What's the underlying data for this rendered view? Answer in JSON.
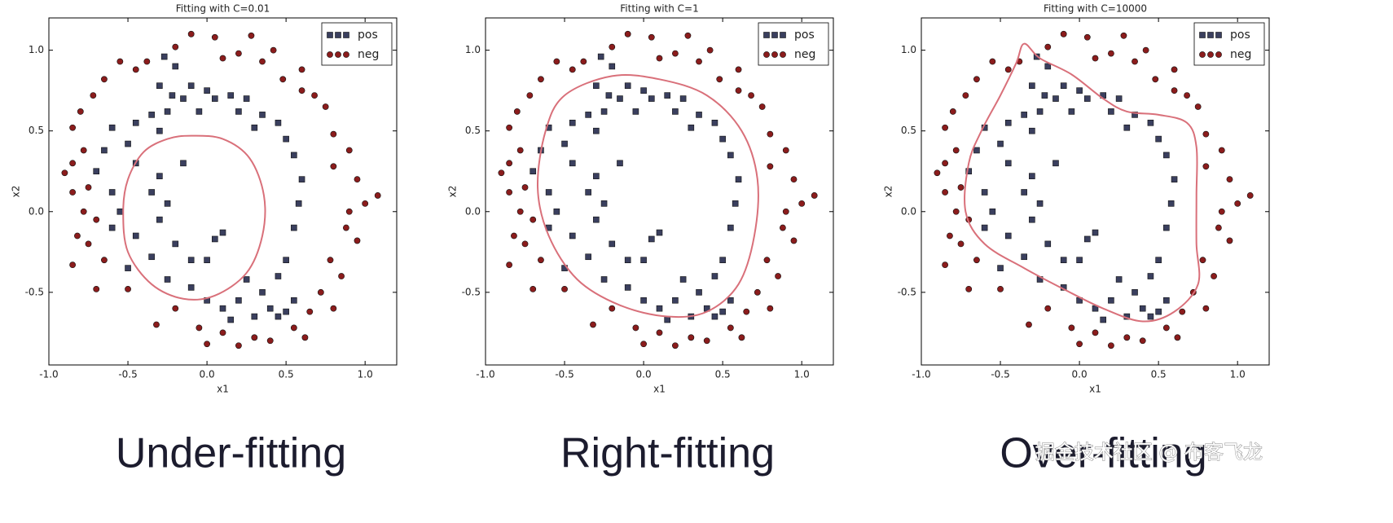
{
  "chart_data": [
    {
      "type": "scatter",
      "title": "Fitting with C=0.01",
      "x_label": "x1",
      "y_label": "x2",
      "caption": "Under-fitting",
      "xlim": [
        -1,
        1.2
      ],
      "ylim": [
        -0.95,
        1.2
      ],
      "xticks": [
        {
          "value": -1,
          "label": "-1.0"
        },
        -0.5,
        {
          "value": 0,
          "label": "0.0"
        },
        0.5,
        {
          "value": 1,
          "label": "1.0"
        }
      ],
      "yticks": [
        -0.5,
        {
          "value": 0,
          "label": "0.0"
        },
        0.5,
        {
          "value": 1,
          "label": "1.0"
        }
      ],
      "legend": "upper right",
      "series": [
        {
          "name": "pos",
          "color": "#3a3f5e",
          "marker": "square",
          "x": [
            -0.27,
            -0.2,
            -0.3,
            -0.1,
            0.0,
            -0.22,
            -0.15,
            0.05,
            0.15,
            0.25,
            -0.35,
            -0.25,
            -0.05,
            0.2,
            0.35,
            -0.45,
            -0.6,
            -0.3,
            0.3,
            0.45,
            -0.65,
            -0.5,
            0.5,
            0.55,
            -0.7,
            -0.45,
            -0.3,
            -0.15,
            0.6,
            -0.6,
            -0.35,
            -0.25,
            0.58,
            -0.55,
            -0.3,
            -0.6,
            0.55,
            -0.45,
            -0.2,
            0.05,
            0.1,
            -0.35,
            -0.1,
            0.0,
            0.5,
            -0.5,
            -0.25,
            -0.1,
            0.25,
            0.45,
            0.55,
            0.35,
            0.2,
            0.1,
            0.15,
            0.3,
            0.4,
            0.5,
            0.0,
            0.45
          ],
          "values": [
            0.96,
            0.9,
            0.78,
            0.78,
            0.75,
            0.72,
            0.7,
            0.7,
            0.72,
            0.7,
            0.6,
            0.62,
            0.62,
            0.62,
            0.6,
            0.55,
            0.52,
            0.5,
            0.52,
            0.55,
            0.38,
            0.42,
            0.45,
            0.35,
            0.25,
            0.3,
            0.22,
            0.3,
            0.2,
            0.12,
            0.12,
            0.05,
            0.05,
            0.0,
            -0.05,
            -0.1,
            -0.1,
            -0.15,
            -0.2,
            -0.17,
            -0.13,
            -0.28,
            -0.3,
            -0.3,
            -0.3,
            -0.35,
            -0.42,
            -0.47,
            -0.42,
            -0.4,
            -0.55,
            -0.5,
            -0.55,
            -0.6,
            -0.67,
            -0.65,
            -0.6,
            -0.62,
            -0.55,
            -0.65
          ]
        },
        {
          "name": "neg",
          "color": "#8b1c1c",
          "marker": "circle",
          "x": [
            -0.1,
            0.05,
            0.28,
            -0.2,
            0.2,
            0.42,
            -0.38,
            -0.55,
            0.35,
            0.6,
            -0.45,
            0.1,
            -0.65,
            -0.72,
            0.48,
            0.68,
            -0.8,
            0.75,
            -0.85,
            0.6,
            -0.78,
            0.8,
            -0.85,
            0.9,
            -0.9,
            0.8,
            -0.75,
            0.95,
            -0.85,
            1.08,
            -0.78,
            0.9,
            -0.7,
            1.0,
            -0.82,
            0.88,
            -0.75,
            0.95,
            -0.85,
            0.78,
            -0.65,
            0.85,
            -0.7,
            0.72,
            -0.5,
            0.8,
            -0.32,
            0.65,
            -0.2,
            0.55,
            0.0,
            0.3,
            0.2,
            0.4,
            -0.05,
            0.62,
            0.1
          ],
          "values": [
            1.1,
            1.08,
            1.09,
            1.02,
            0.98,
            1.0,
            0.93,
            0.93,
            0.93,
            0.88,
            0.88,
            0.95,
            0.82,
            0.72,
            0.82,
            0.72,
            0.62,
            0.65,
            0.52,
            0.75,
            0.38,
            0.48,
            0.3,
            0.38,
            0.24,
            0.28,
            0.15,
            0.2,
            0.12,
            0.1,
            0.0,
            0.0,
            -0.05,
            0.05,
            -0.15,
            -0.1,
            -0.2,
            -0.18,
            -0.33,
            -0.3,
            -0.3,
            -0.4,
            -0.48,
            -0.5,
            -0.48,
            -0.6,
            -0.7,
            -0.62,
            -0.6,
            -0.72,
            -0.82,
            -0.78,
            -0.83,
            -0.8,
            -0.72,
            -0.78,
            -0.75
          ]
        }
      ],
      "boundary": {
        "color": "#d9707a",
        "x": [
          -0.1,
          0.1,
          0.27,
          0.36,
          0.35,
          0.25,
          0.05,
          -0.15,
          -0.35,
          -0.5,
          -0.53,
          -0.5,
          -0.4,
          -0.25
        ],
        "y": [
          0.47,
          0.45,
          0.33,
          0.1,
          -0.15,
          -0.38,
          -0.52,
          -0.54,
          -0.45,
          -0.25,
          0.0,
          0.2,
          0.37,
          0.45
        ]
      }
    },
    {
      "type": "scatter",
      "title": "Fitting with C=1",
      "x_label": "x1",
      "y_label": "x2",
      "caption": "Right-fitting",
      "xlim": [
        -1,
        1.2
      ],
      "ylim": [
        -0.95,
        1.2
      ],
      "xticks": [
        {
          "value": -1,
          "label": "-1.0"
        },
        -0.5,
        {
          "value": 0,
          "label": "0.0"
        },
        0.5,
        {
          "value": 1,
          "label": "1.0"
        }
      ],
      "yticks": [
        -0.5,
        {
          "value": 0,
          "label": "0.0"
        },
        0.5,
        {
          "value": 1,
          "label": "1.0"
        }
      ],
      "legend": "upper right",
      "series": [
        {
          "name": "pos",
          "color": "#3a3f5e",
          "marker": "square",
          "x": [
            -0.27,
            -0.2,
            -0.3,
            -0.1,
            0.0,
            -0.22,
            -0.15,
            0.05,
            0.15,
            0.25,
            -0.35,
            -0.25,
            -0.05,
            0.2,
            0.35,
            -0.45,
            -0.6,
            -0.3,
            0.3,
            0.45,
            -0.65,
            -0.5,
            0.5,
            0.55,
            -0.7,
            -0.45,
            -0.3,
            -0.15,
            0.6,
            -0.6,
            -0.35,
            -0.25,
            0.58,
            -0.55,
            -0.3,
            -0.6,
            0.55,
            -0.45,
            -0.2,
            0.05,
            0.1,
            -0.35,
            -0.1,
            0.0,
            0.5,
            -0.5,
            -0.25,
            -0.1,
            0.25,
            0.45,
            0.55,
            0.35,
            0.2,
            0.1,
            0.15,
            0.3,
            0.4,
            0.5,
            0.0,
            0.45
          ],
          "values": [
            0.96,
            0.9,
            0.78,
            0.78,
            0.75,
            0.72,
            0.7,
            0.7,
            0.72,
            0.7,
            0.6,
            0.62,
            0.62,
            0.62,
            0.6,
            0.55,
            0.52,
            0.5,
            0.52,
            0.55,
            0.38,
            0.42,
            0.45,
            0.35,
            0.25,
            0.3,
            0.22,
            0.3,
            0.2,
            0.12,
            0.12,
            0.05,
            0.05,
            0.0,
            -0.05,
            -0.1,
            -0.1,
            -0.15,
            -0.2,
            -0.17,
            -0.13,
            -0.28,
            -0.3,
            -0.3,
            -0.3,
            -0.35,
            -0.42,
            -0.47,
            -0.42,
            -0.4,
            -0.55,
            -0.5,
            -0.55,
            -0.6,
            -0.67,
            -0.65,
            -0.6,
            -0.62,
            -0.55,
            -0.65
          ]
        },
        {
          "name": "neg",
          "color": "#8b1c1c",
          "marker": "circle",
          "x": [
            -0.1,
            0.05,
            0.28,
            -0.2,
            0.2,
            0.42,
            -0.38,
            -0.55,
            0.35,
            0.6,
            -0.45,
            0.1,
            -0.65,
            -0.72,
            0.48,
            0.68,
            -0.8,
            0.75,
            -0.85,
            0.6,
            -0.78,
            0.8,
            -0.85,
            0.9,
            -0.9,
            0.8,
            -0.75,
            0.95,
            -0.85,
            1.08,
            -0.78,
            0.9,
            -0.7,
            1.0,
            -0.82,
            0.88,
            -0.75,
            0.95,
            -0.85,
            0.78,
            -0.65,
            0.85,
            -0.7,
            0.72,
            -0.5,
            0.8,
            -0.32,
            0.65,
            -0.2,
            0.55,
            0.0,
            0.3,
            0.2,
            0.4,
            -0.05,
            0.62,
            0.1
          ],
          "values": [
            1.1,
            1.08,
            1.09,
            1.02,
            0.98,
            1.0,
            0.93,
            0.93,
            0.93,
            0.88,
            0.88,
            0.95,
            0.82,
            0.72,
            0.82,
            0.72,
            0.62,
            0.65,
            0.52,
            0.75,
            0.38,
            0.48,
            0.3,
            0.38,
            0.24,
            0.28,
            0.15,
            0.2,
            0.12,
            0.1,
            0.0,
            0.0,
            -0.05,
            0.05,
            -0.15,
            -0.1,
            -0.2,
            -0.18,
            -0.33,
            -0.3,
            -0.3,
            -0.4,
            -0.48,
            -0.5,
            -0.48,
            -0.6,
            -0.7,
            -0.62,
            -0.6,
            -0.72,
            -0.82,
            -0.78,
            -0.83,
            -0.8,
            -0.72,
            -0.78,
            -0.75
          ]
        }
      ],
      "boundary": {
        "color": "#d9707a",
        "x": [
          -0.2,
          0.1,
          0.4,
          0.62,
          0.72,
          0.7,
          0.6,
          0.4,
          0.15,
          -0.15,
          -0.42,
          -0.6,
          -0.67,
          -0.62,
          -0.5
        ],
        "y": [
          0.84,
          0.82,
          0.72,
          0.5,
          0.2,
          -0.15,
          -0.45,
          -0.62,
          -0.65,
          -0.58,
          -0.42,
          -0.15,
          0.15,
          0.5,
          0.72
        ]
      }
    },
    {
      "type": "scatter",
      "title": "Fitting with C=10000",
      "x_label": "x1",
      "y_label": "x2",
      "caption": "Over-fitting",
      "xlim": [
        -1,
        1.2
      ],
      "ylim": [
        -0.95,
        1.2
      ],
      "xticks": [
        {
          "value": -1,
          "label": "-1.0"
        },
        -0.5,
        {
          "value": 0,
          "label": "0.0"
        },
        0.5,
        {
          "value": 1,
          "label": "1.0"
        }
      ],
      "yticks": [
        -0.5,
        {
          "value": 0,
          "label": "0.0"
        },
        0.5,
        {
          "value": 1,
          "label": "1.0"
        }
      ],
      "legend": "upper right",
      "series": [
        {
          "name": "pos",
          "color": "#3a3f5e",
          "marker": "square",
          "x": [
            -0.27,
            -0.2,
            -0.3,
            -0.1,
            0.0,
            -0.22,
            -0.15,
            0.05,
            0.15,
            0.25,
            -0.35,
            -0.25,
            -0.05,
            0.2,
            0.35,
            -0.45,
            -0.6,
            -0.3,
            0.3,
            0.45,
            -0.65,
            -0.5,
            0.5,
            0.55,
            -0.7,
            -0.45,
            -0.3,
            -0.15,
            0.6,
            -0.6,
            -0.35,
            -0.25,
            0.58,
            -0.55,
            -0.3,
            -0.6,
            0.55,
            -0.45,
            -0.2,
            0.05,
            0.1,
            -0.35,
            -0.1,
            0.0,
            0.5,
            -0.5,
            -0.25,
            -0.1,
            0.25,
            0.45,
            0.55,
            0.35,
            0.2,
            0.1,
            0.15,
            0.3,
            0.4,
            0.5,
            0.0,
            0.45
          ],
          "values": [
            0.96,
            0.9,
            0.78,
            0.78,
            0.75,
            0.72,
            0.7,
            0.7,
            0.72,
            0.7,
            0.6,
            0.62,
            0.62,
            0.62,
            0.6,
            0.55,
            0.52,
            0.5,
            0.52,
            0.55,
            0.38,
            0.42,
            0.45,
            0.35,
            0.25,
            0.3,
            0.22,
            0.3,
            0.2,
            0.12,
            0.12,
            0.05,
            0.05,
            0.0,
            -0.05,
            -0.1,
            -0.1,
            -0.15,
            -0.2,
            -0.17,
            -0.13,
            -0.28,
            -0.3,
            -0.3,
            -0.3,
            -0.35,
            -0.42,
            -0.47,
            -0.42,
            -0.4,
            -0.55,
            -0.5,
            -0.55,
            -0.6,
            -0.67,
            -0.65,
            -0.6,
            -0.62,
            -0.55,
            -0.65
          ]
        },
        {
          "name": "neg",
          "color": "#8b1c1c",
          "marker": "circle",
          "x": [
            -0.1,
            0.05,
            0.28,
            -0.2,
            0.2,
            0.42,
            -0.38,
            -0.55,
            0.35,
            0.6,
            -0.45,
            0.1,
            -0.65,
            -0.72,
            0.48,
            0.68,
            -0.8,
            0.75,
            -0.85,
            0.6,
            -0.78,
            0.8,
            -0.85,
            0.9,
            -0.9,
            0.8,
            -0.75,
            0.95,
            -0.85,
            1.08,
            -0.78,
            0.9,
            -0.7,
            1.0,
            -0.82,
            0.88,
            -0.75,
            0.95,
            -0.85,
            0.78,
            -0.65,
            0.85,
            -0.7,
            0.72,
            -0.5,
            0.8,
            -0.32,
            0.65,
            -0.2,
            0.55,
            0.0,
            0.3,
            0.2,
            0.4,
            -0.05,
            0.62,
            0.1
          ],
          "values": [
            1.1,
            1.08,
            1.09,
            1.02,
            0.98,
            1.0,
            0.93,
            0.93,
            0.93,
            0.88,
            0.88,
            0.95,
            0.82,
            0.72,
            0.82,
            0.72,
            0.62,
            0.65,
            0.52,
            0.75,
            0.38,
            0.48,
            0.3,
            0.38,
            0.24,
            0.28,
            0.15,
            0.2,
            0.12,
            0.1,
            0.0,
            0.0,
            -0.05,
            0.05,
            -0.15,
            -0.1,
            -0.2,
            -0.18,
            -0.33,
            -0.3,
            -0.3,
            -0.4,
            -0.48,
            -0.5,
            -0.48,
            -0.6,
            -0.7,
            -0.62,
            -0.6,
            -0.72,
            -0.82,
            -0.78,
            -0.83,
            -0.8,
            -0.72,
            -0.78,
            -0.75
          ]
        }
      ],
      "boundary": {
        "color": "#d9707a",
        "x": [
          -0.35,
          -0.25,
          -0.05,
          0.15,
          0.3,
          0.5,
          0.68,
          0.74,
          0.74,
          0.74,
          0.75,
          0.6,
          0.4,
          0.15,
          -0.1,
          -0.35,
          -0.6,
          -0.72,
          -0.7,
          -0.62,
          -0.5,
          -0.4
        ],
        "y": [
          1.04,
          0.95,
          0.85,
          0.7,
          0.62,
          0.6,
          0.55,
          0.4,
          0.1,
          -0.2,
          -0.45,
          -0.62,
          -0.68,
          -0.6,
          -0.48,
          -0.35,
          -0.2,
          0.0,
          0.3,
          0.5,
          0.72,
          0.92
        ]
      }
    }
  ],
  "watermark": "掘金技术社区 @ 布客飞龙"
}
